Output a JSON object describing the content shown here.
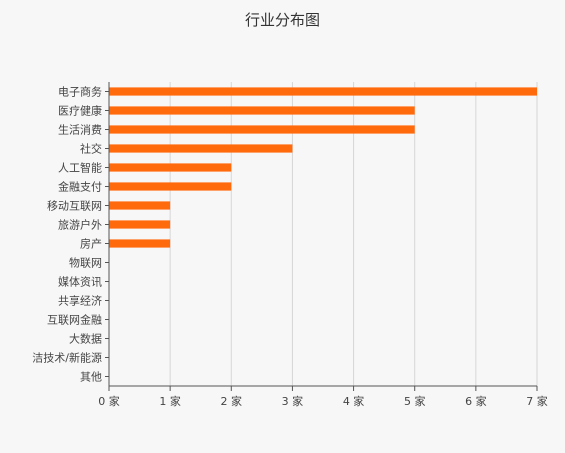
{
  "chart_data": {
    "type": "bar",
    "orientation": "horizontal",
    "title": "行业分布图",
    "categories": [
      "电子商务",
      "医疗健康",
      "生活消费",
      "社交",
      "人工智能",
      "金融支付",
      "移动互联网",
      "旅游户外",
      "房产",
      "物联网",
      "媒体资讯",
      "共享经济",
      "互联网金融",
      "大数据",
      "洁技术/新能源",
      "其他"
    ],
    "values": [
      7,
      5,
      5,
      3,
      2,
      2,
      1,
      1,
      1,
      0,
      0,
      0,
      0,
      0,
      0,
      0
    ],
    "xlim": [
      0,
      7
    ],
    "xticks": [
      0,
      1,
      2,
      3,
      4,
      5,
      6,
      7
    ],
    "x_unit_suffix": " 家",
    "grid": true,
    "bar_color": "#ff6a0d"
  }
}
